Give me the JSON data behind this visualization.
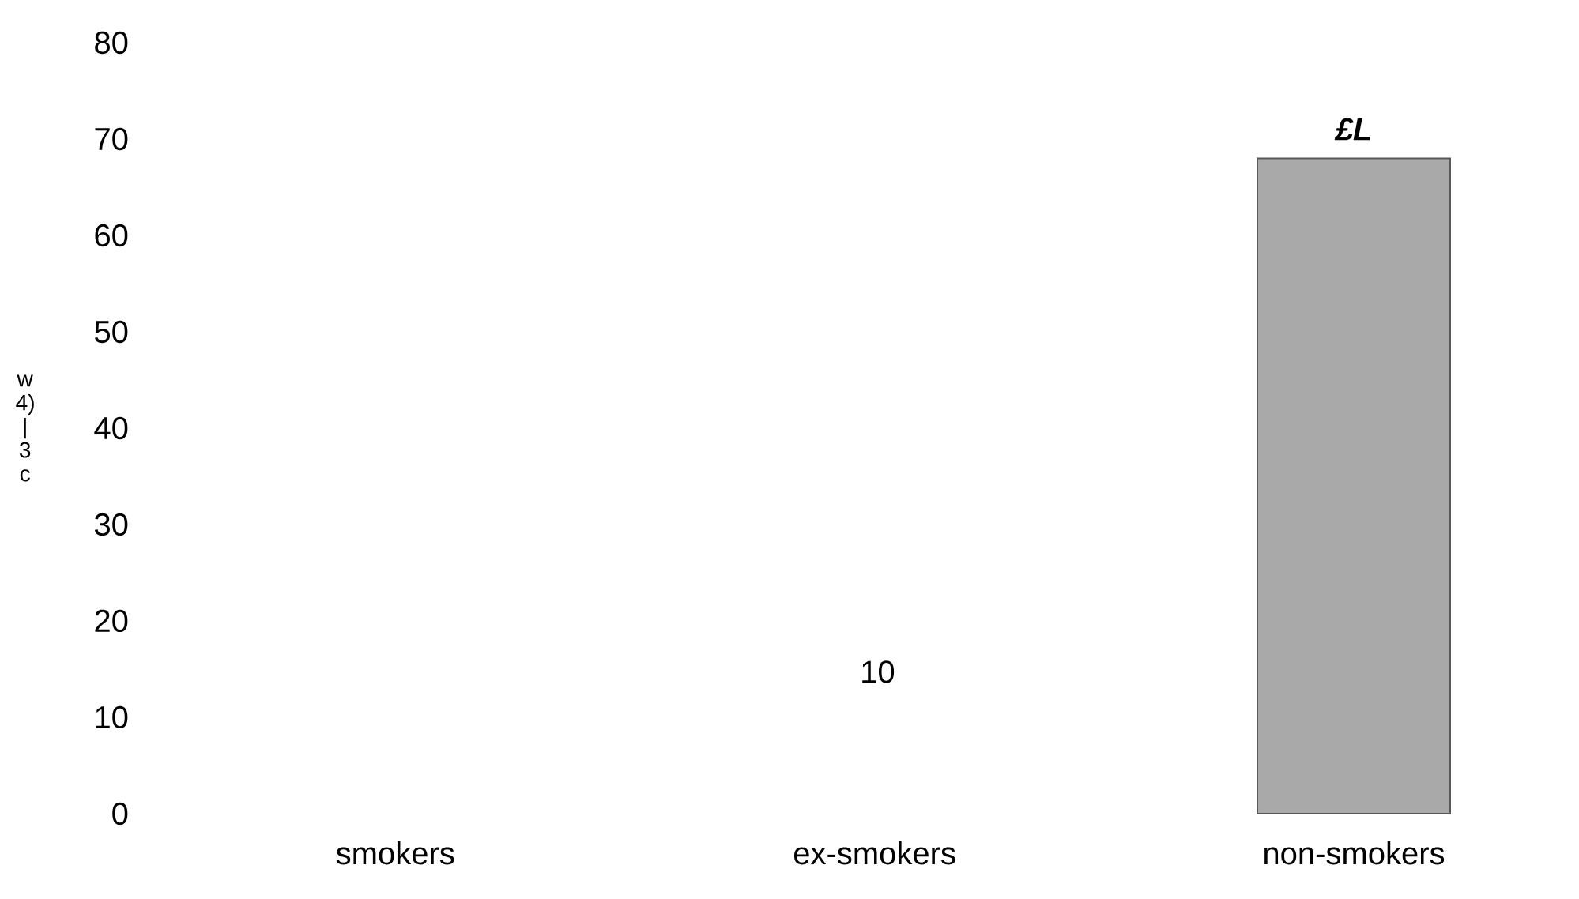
{
  "chart_data": {
    "type": "bar",
    "ylabel": "w 4) | 3 c",
    "categories": [
      "smokers",
      "ex-smokers",
      "non-smokers"
    ],
    "values": [
      null,
      null,
      68
    ],
    "color": "#a9a9a9",
    "value_labels": [
      null,
      null,
      "£L"
    ],
    "ylim": [
      0,
      80
    ],
    "yticks": [
      0,
      10,
      20,
      30,
      40,
      50,
      60,
      70,
      80
    ],
    "annotations": [
      "10"
    ]
  }
}
